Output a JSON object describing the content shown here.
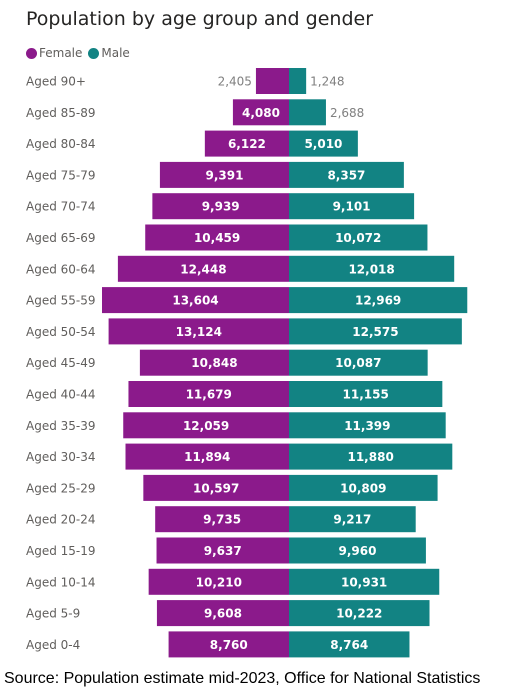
{
  "colors": {
    "female": "#8b1a8b",
    "male": "#128383"
  },
  "chart_data": {
    "type": "bar",
    "orientation": "horizontal-pyramid",
    "title": "Population by age group and gender",
    "legend": "top-left",
    "categories": [
      "Aged 90+",
      "Aged 85-89",
      "Aged 80-84",
      "Aged 75-79",
      "Aged 70-74",
      "Aged 65-69",
      "Aged 60-64",
      "Aged 55-59",
      "Aged 50-54",
      "Aged 45-49",
      "Aged 40-44",
      "Aged 35-39",
      "Aged 30-34",
      "Aged 25-29",
      "Aged 20-24",
      "Aged 15-19",
      "Aged 10-14",
      "Aged 5-9",
      "Aged 0-4"
    ],
    "series": [
      {
        "name": "Female",
        "values": [
          2405,
          4080,
          6122,
          9391,
          9939,
          10459,
          12448,
          13604,
          13124,
          10848,
          11679,
          12059,
          11894,
          10597,
          9735,
          9637,
          10210,
          9608,
          8760
        ],
        "labels": [
          "2,405",
          "4,080",
          "6,122",
          "9,391",
          "9,939",
          "10,459",
          "12,448",
          "13,604",
          "13,124",
          "10,848",
          "11,679",
          "12,059",
          "11,894",
          "10,597",
          "9,735",
          "9,637",
          "10,210",
          "9,608",
          "8,760"
        ]
      },
      {
        "name": "Male",
        "values": [
          1248,
          2688,
          5010,
          8357,
          9101,
          10072,
          12018,
          12969,
          12575,
          10087,
          11155,
          11399,
          11880,
          10809,
          9217,
          9960,
          10931,
          10222,
          8764
        ],
        "labels": [
          "1,248",
          "2,688",
          "5,010",
          "8,357",
          "9,101",
          "10,072",
          "12,018",
          "12,969",
          "12,575",
          "10,087",
          "11,155",
          "11,399",
          "11,880",
          "10,809",
          "9,217",
          "9,960",
          "10,931",
          "10,222",
          "8,764"
        ]
      }
    ]
  },
  "source": "Source: Population estimate mid-2023, Office for National Statistics"
}
